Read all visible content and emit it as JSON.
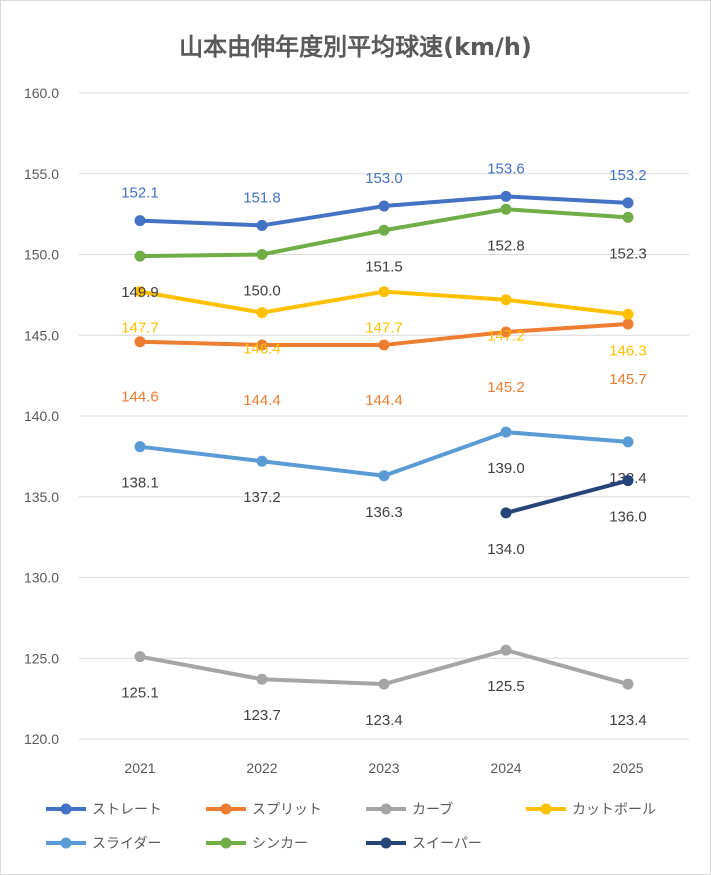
{
  "chart_data": {
    "type": "line",
    "title": "山本由伸年度別平均球速(km/h)",
    "categories": [
      "2021",
      "2022",
      "2023",
      "2024",
      "2025"
    ],
    "ylim": [
      120,
      160
    ],
    "yticks": [
      "120.0",
      "125.0",
      "130.0",
      "135.0",
      "140.0",
      "145.0",
      "150.0",
      "155.0",
      "160.0"
    ],
    "grid": true,
    "legend": "bottom",
    "series": [
      {
        "name": "ストレート",
        "color": "#4472C4",
        "label_color": "#4472C4",
        "label_pos": "above",
        "values": [
          152.1,
          151.8,
          153.0,
          153.6,
          153.2
        ]
      },
      {
        "name": "スプリット",
        "color": "#ED7D31",
        "label_color": "#ED7D31",
        "label_pos": "below",
        "values": [
          144.6,
          144.4,
          144.4,
          145.2,
          145.7
        ]
      },
      {
        "name": "カーブ",
        "color": "#A5A5A5",
        "label_color": "#404040",
        "label_pos": "below",
        "values": [
          125.1,
          123.7,
          123.4,
          125.5,
          123.4
        ]
      },
      {
        "name": "カットボール",
        "color": "#FFC000",
        "label_color": "#FFC000",
        "label_pos": "below",
        "values": [
          147.7,
          146.4,
          147.7,
          147.2,
          146.3
        ]
      },
      {
        "name": "スライダー",
        "color": "#5B9BD5",
        "label_color": "#404040",
        "label_pos": "below",
        "values": [
          138.1,
          137.2,
          136.3,
          139.0,
          138.4
        ]
      },
      {
        "name": "シンカー",
        "color": "#70AD47",
        "label_color": "#404040",
        "label_pos": "below",
        "values": [
          149.9,
          150.0,
          151.5,
          152.8,
          152.3
        ]
      },
      {
        "name": "スイーパー",
        "color": "#264478",
        "label_color": "#404040",
        "label_pos": "below",
        "values": [
          null,
          null,
          null,
          134.0,
          136.0
        ]
      }
    ]
  }
}
